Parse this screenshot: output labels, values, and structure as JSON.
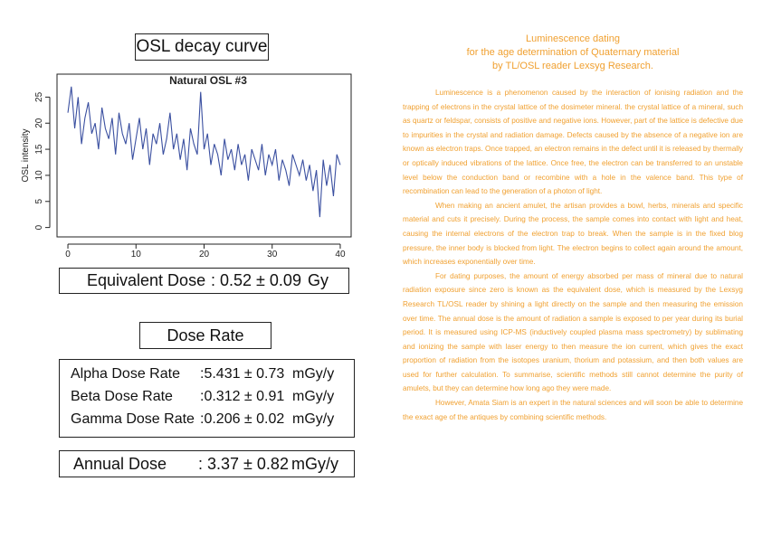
{
  "chart_data": {
    "type": "line",
    "title": "Natural OSL #3",
    "y_label": "OSL intensity",
    "x": [
      0,
      0.5,
      1,
      1.5,
      2,
      2.5,
      3,
      3.5,
      4,
      4.5,
      5,
      5.5,
      6,
      6.5,
      7,
      7.5,
      8,
      8.5,
      9,
      9.5,
      10,
      10.5,
      11,
      11.5,
      12,
      12.5,
      13,
      13.5,
      14,
      14.5,
      15,
      15.5,
      16,
      16.5,
      17,
      17.5,
      18,
      18.5,
      19,
      19.5,
      20,
      20.5,
      21,
      21.5,
      22,
      22.5,
      23,
      23.5,
      24,
      24.5,
      25,
      25.5,
      26,
      26.5,
      27,
      27.5,
      28,
      28.5,
      29,
      29.5,
      30,
      30.5,
      31,
      31.5,
      32,
      32.5,
      33,
      33.5,
      34,
      34.5,
      35,
      35.5,
      36,
      36.5,
      37,
      37.5,
      38,
      38.5,
      39,
      39.5,
      40
    ],
    "series": [
      {
        "color": "#3a4fa0",
        "values": [
          22,
          27,
          19,
          25,
          16,
          21,
          24,
          18,
          20,
          15,
          23,
          19,
          17,
          21,
          14,
          22,
          18,
          16,
          20,
          13,
          17,
          21,
          15,
          19,
          12,
          18,
          16,
          20,
          14,
          17,
          22,
          15,
          18,
          13,
          17,
          11,
          19,
          16,
          14,
          26,
          15,
          18,
          12,
          16,
          14,
          10,
          17,
          13,
          15,
          11,
          16,
          12,
          14,
          9,
          15,
          13,
          11,
          16,
          10,
          14,
          12,
          15,
          9,
          13,
          11,
          8,
          14,
          12,
          10,
          13,
          9,
          12,
          7,
          11,
          2,
          13,
          8,
          12,
          6,
          14,
          12
        ]
      }
    ],
    "xlim": [
      -1.6,
      41.6
    ],
    "ylim": [
      -1.8,
      29.4
    ],
    "xticks": [
      0,
      10,
      20,
      30,
      40
    ],
    "yticks": [
      0,
      5,
      10,
      15,
      20,
      25
    ]
  },
  "document": {
    "osl_heading": "OSL decay curve",
    "equivalent_dose": {
      "label": "Equivalent Dose",
      "value": ": 0.52 ± 0.09",
      "unit": "Gy"
    },
    "dose_rate_heading": "Dose Rate",
    "dose_rates": [
      {
        "label": "Alpha Dose Rate",
        "value": ":5.431 ± 0.73",
        "unit": "mGy/y"
      },
      {
        "label": "Beta Dose Rate",
        "value": ":0.312 ± 0.91",
        "unit": "mGy/y"
      },
      {
        "label": "Gamma Dose Rate",
        "value": ":0.206 ± 0.02",
        "unit": "mGy/y"
      }
    ],
    "annual_dose": {
      "label": "Annual Dose",
      "value": ": 3.37 ± 0.82",
      "unit": "mGy/y"
    },
    "article_title": [
      "Luminescence dating",
      "for the age determination of Quaternary material",
      "by TL/OSL reader Lexsyg Research."
    ],
    "paragraphs": [
      "Luminescence is a phenomenon caused by the interaction of ionising radiation and the trapping of electrons in the crystal lattice of the dosimeter mineral. the crystal lattice of a mineral, such as quartz or feldspar, consists of positive and negative ions. However, part of the lattice is defective due to impurities in the crystal and radiation damage. Defects caused by the absence of a negative ion are known as electron traps. Once trapped, an electron remains in the defect until it is released by thermally or optically induced vibrations of the lattice. Once free, the electron can be transferred to an unstable level below the conduction band or recombine with a hole in the valence band. This type of recombination can lead to the generation of a photon of light.",
      "When making an ancient amulet, the artisan provides a bowl, herbs, minerals and specific material and cuts it precisely. During the process, the sample comes into contact with light and heat, causing the internal electrons of the electron trap to break. When the sample is in the fixed blog pressure, the inner body is blocked from light. The electron begins to collect again around the amount, which increases exponentially over time.",
      "For dating purposes, the amount of energy absorbed per mass of mineral due to natural radiation exposure since zero is known as the equivalent dose, which is measured by the Lexsyg Research TL/OSL reader by shining a light directly on the sample and then measuring the emission over time. The annual dose is the amount of radiation a sample is exposed to per year during its burial period. It is measured using ICP-MS (inductively coupled plasma mass spectrometry) by sublimating and ionizing the sample with laser energy to then measure the ion current, which gives the exact proportion of radiation from the isotopes uranium, thorium and potassium, and then both values are used for further calculation. To summarise, scientific methods still cannot determine the purity of amulets, but they can determine how long ago they were made.",
      "However, Amata Siam is an expert in the natural sciences and will soon be able to determine the exact age of the antiques by combining scientific methods."
    ]
  }
}
